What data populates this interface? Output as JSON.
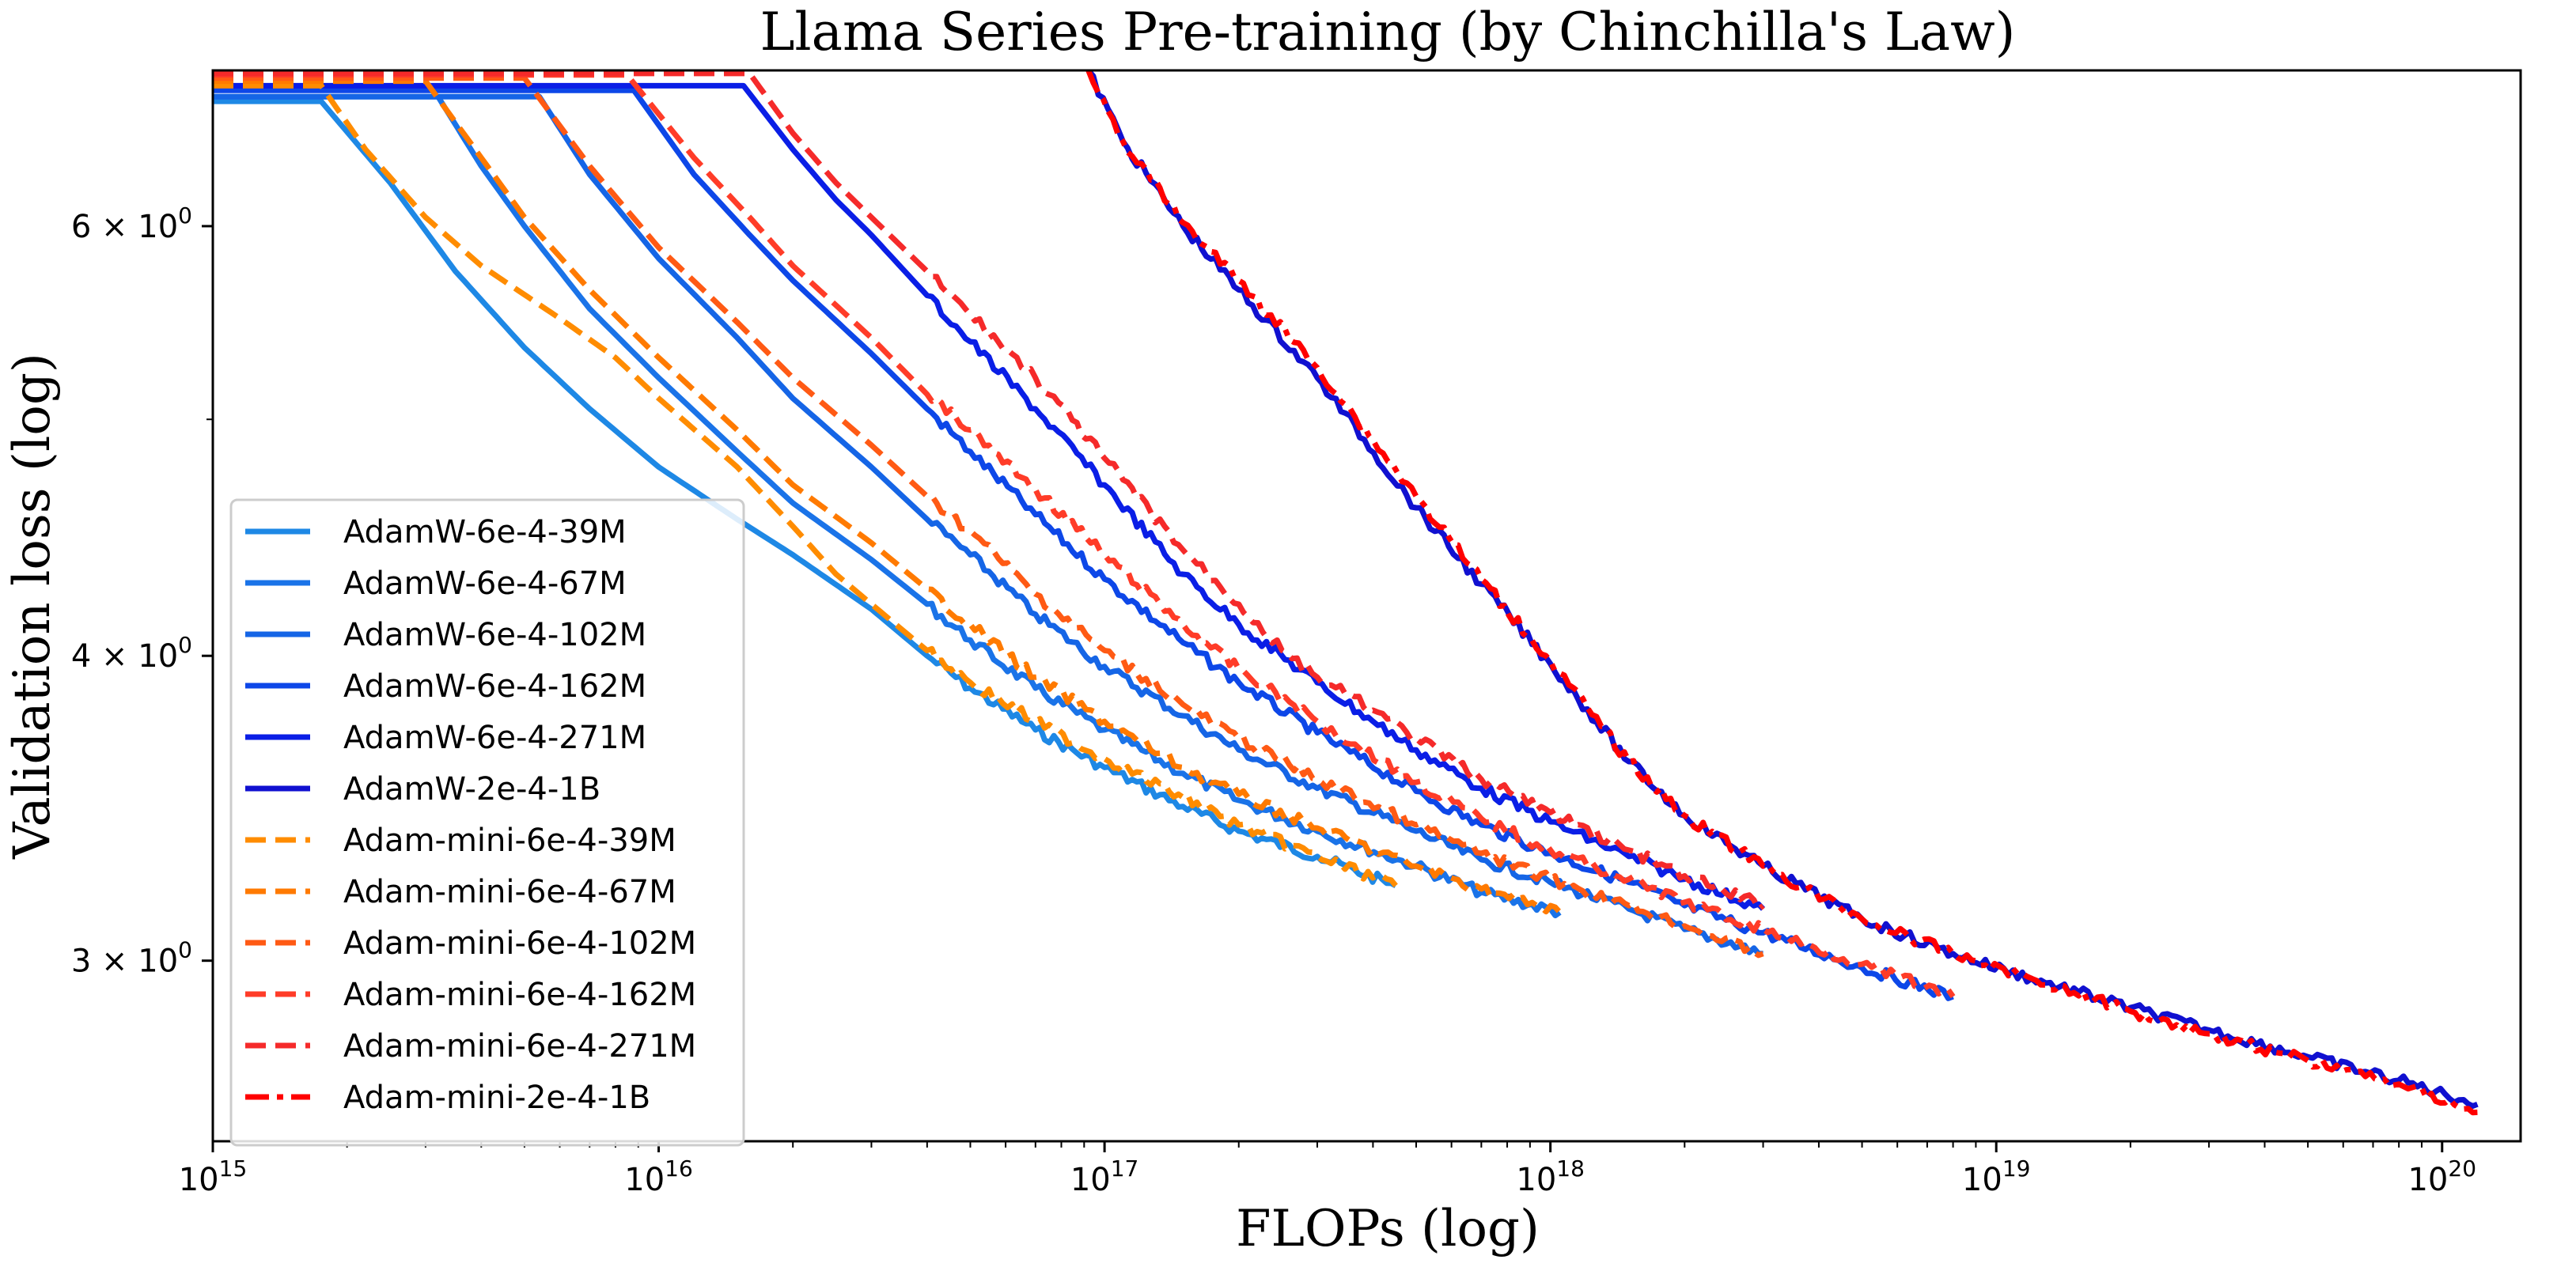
{
  "chart_data": {
    "type": "line",
    "title": "Llama Series Pre-training (by Chinchilla's Law)",
    "xlabel": "FLOPs (log)",
    "ylabel": "Validation loss (log)",
    "xscale": "log",
    "yscale": "log",
    "xlim": [
      1000000000000000.0,
      1.5e+20
    ],
    "ylim": [
      2.53,
      6.95
    ],
    "x_tick_labels": [
      {
        "value": 1000000000000000.0,
        "base": "10",
        "exp": "15"
      },
      {
        "value": 1e+16,
        "base": "10",
        "exp": "16"
      },
      {
        "value": 1e+17,
        "base": "10",
        "exp": "17"
      },
      {
        "value": 1e+18,
        "base": "10",
        "exp": "18"
      },
      {
        "value": 1e+19,
        "base": "10",
        "exp": "19"
      },
      {
        "value": 1e+20,
        "base": "10",
        "exp": "20"
      }
    ],
    "y_tick_labels": [
      {
        "value": 3,
        "mant": "3 × 10",
        "exp": "0"
      },
      {
        "value": 4,
        "mant": "4 × 10",
        "exp": "0"
      },
      {
        "value": 6,
        "mant": "6 × 10",
        "exp": "0"
      }
    ],
    "y_minor_ticks": [
      5
    ],
    "legend_position": "lower-left",
    "series": [
      {
        "name": "AdamW-6e-4-39M",
        "color": "#1e88e5",
        "dash": "solid",
        "points": [
          [
            1000000000000000.0,
            6.75
          ],
          [
            1750000000000000.0,
            6.75
          ],
          [
            2500000000000000.0,
            6.25
          ],
          [
            3500000000000000.0,
            5.75
          ],
          [
            5000000000000000.0,
            5.35
          ],
          [
            7000000000000000.0,
            5.05
          ],
          [
            1e+16,
            4.78
          ],
          [
            1.5e+16,
            4.55
          ],
          [
            2e+16,
            4.4
          ],
          [
            3e+16,
            4.18
          ],
          [
            4e+16,
            4.0
          ],
          [
            5e+16,
            3.88
          ],
          [
            7e+16,
            3.73
          ],
          [
            1e+17,
            3.6
          ],
          [
            1.5e+17,
            3.47
          ],
          [
            2e+17,
            3.39
          ],
          [
            3e+17,
            3.31
          ],
          [
            4.5e+17,
            3.22
          ]
        ]
      },
      {
        "name": "AdamW-6e-4-67M",
        "color": "#1a73e8",
        "dash": "solid",
        "points": [
          [
            1000000000000000.0,
            6.78
          ],
          [
            3200000000000000.0,
            6.78
          ],
          [
            4000000000000000.0,
            6.35
          ],
          [
            5000000000000000.0,
            6.0
          ],
          [
            7000000000000000.0,
            5.55
          ],
          [
            1e+16,
            5.2
          ],
          [
            1.5e+16,
            4.85
          ],
          [
            2e+16,
            4.62
          ],
          [
            3e+16,
            4.38
          ],
          [
            4e+16,
            4.2
          ],
          [
            5e+16,
            4.06
          ],
          [
            7e+16,
            3.88
          ],
          [
            1e+17,
            3.73
          ],
          [
            1.5e+17,
            3.58
          ],
          [
            2e+17,
            3.49
          ],
          [
            3e+17,
            3.39
          ],
          [
            5e+17,
            3.28
          ],
          [
            7e+17,
            3.2
          ],
          [
            1.05e+18,
            3.14
          ]
        ]
      },
      {
        "name": "AdamW-6e-4-102M",
        "color": "#1565e6",
        "dash": "solid",
        "points": [
          [
            1000000000000000.0,
            6.78
          ],
          [
            5400000000000000.0,
            6.78
          ],
          [
            7000000000000000.0,
            6.3
          ],
          [
            1e+16,
            5.82
          ],
          [
            1.5e+16,
            5.4
          ],
          [
            2e+16,
            5.1
          ],
          [
            3e+16,
            4.78
          ],
          [
            4e+16,
            4.55
          ],
          [
            5e+16,
            4.4
          ],
          [
            7e+16,
            4.16
          ],
          [
            1e+17,
            3.96
          ],
          [
            1.5e+17,
            3.78
          ],
          [
            2e+17,
            3.66
          ],
          [
            3e+17,
            3.53
          ],
          [
            5e+17,
            3.39
          ],
          [
            7e+17,
            3.3
          ],
          [
            1e+18,
            3.23
          ],
          [
            1.5e+18,
            3.15
          ],
          [
            2e+18,
            3.09
          ],
          [
            3e+18,
            3.02
          ]
        ]
      },
      {
        "name": "AdamW-6e-4-162M",
        "color": "#0d47e8",
        "dash": "solid",
        "points": [
          [
            1000000000000000.0,
            6.82
          ],
          [
            8800000000000000.0,
            6.82
          ],
          [
            1.2e+16,
            6.3
          ],
          [
            1.6e+16,
            5.95
          ],
          [
            2e+16,
            5.7
          ],
          [
            3e+16,
            5.32
          ],
          [
            4e+16,
            5.05
          ],
          [
            5e+16,
            4.85
          ],
          [
            7e+16,
            4.57
          ],
          [
            1e+17,
            4.3
          ],
          [
            1.5e+17,
            4.05
          ],
          [
            2e+17,
            3.9
          ],
          [
            3e+17,
            3.72
          ],
          [
            5e+17,
            3.52
          ],
          [
            7e+17,
            3.41
          ],
          [
            1e+18,
            3.32
          ],
          [
            1.5e+18,
            3.23
          ],
          [
            2e+18,
            3.16
          ],
          [
            3e+18,
            3.08
          ],
          [
            5e+18,
            2.98
          ],
          [
            8e+18,
            2.9
          ]
        ]
      },
      {
        "name": "AdamW-6e-4-271M",
        "color": "#0a1ee6",
        "dash": "solid",
        "points": [
          [
            1000000000000000.0,
            6.85
          ],
          [
            1.55e+16,
            6.85
          ],
          [
            2e+16,
            6.45
          ],
          [
            2.5e+16,
            6.15
          ],
          [
            3e+16,
            5.95
          ],
          [
            4e+16,
            5.62
          ],
          [
            5e+16,
            5.38
          ],
          [
            7e+16,
            5.05
          ],
          [
            1e+17,
            4.7
          ],
          [
            1.5e+17,
            4.32
          ],
          [
            2e+17,
            4.12
          ],
          [
            3e+17,
            3.9
          ],
          [
            4e+17,
            3.76
          ],
          [
            5e+17,
            3.66
          ],
          [
            7e+17,
            3.53
          ],
          [
            1e+18,
            3.42
          ],
          [
            1.5e+18,
            3.31
          ],
          [
            2e+18,
            3.24
          ],
          [
            3e+18,
            3.15
          ]
        ]
      },
      {
        "name": "AdamW-2e-4-1B",
        "color": "#1010d0",
        "dash": "solid",
        "points": [
          [
            9.2e+16,
            6.95
          ],
          [
            1.1e+17,
            6.5
          ],
          [
            1.5e+17,
            6.0
          ],
          [
            2e+17,
            5.65
          ],
          [
            3e+17,
            5.2
          ],
          [
            5e+17,
            4.6
          ],
          [
            7e+17,
            4.28
          ],
          [
            1e+18,
            3.97
          ],
          [
            1.5e+18,
            3.62
          ],
          [
            2e+18,
            3.44
          ],
          [
            3e+18,
            3.28
          ],
          [
            5e+18,
            3.12
          ],
          [
            8e+18,
            3.02
          ],
          [
            1.2e+19,
            2.95
          ],
          [
            2e+19,
            2.87
          ],
          [
            3e+19,
            2.81
          ],
          [
            5e+19,
            2.74
          ],
          [
            8e+19,
            2.68
          ],
          [
            1.2e+20,
            2.62
          ]
        ]
      },
      {
        "name": "Adam-mini-6e-4-39M",
        "color": "#ff8c00",
        "dash": "dashed",
        "points": [
          [
            1000000000000000.0,
            6.85
          ],
          [
            1750000000000000.0,
            6.85
          ],
          [
            2200000000000000.0,
            6.45
          ],
          [
            3000000000000000.0,
            6.05
          ],
          [
            4000000000000000.0,
            5.78
          ],
          [
            6000000000000000.0,
            5.5
          ],
          [
            8000000000000000.0,
            5.3
          ],
          [
            1e+16,
            5.1
          ],
          [
            1.5e+16,
            4.78
          ],
          [
            2e+16,
            4.52
          ],
          [
            2.5e+16,
            4.32
          ],
          [
            3e+16,
            4.2
          ],
          [
            4e+16,
            4.02
          ],
          [
            5e+16,
            3.9
          ],
          [
            7e+16,
            3.76
          ],
          [
            1e+17,
            3.63
          ],
          [
            1.5e+17,
            3.5
          ],
          [
            2e+17,
            3.41
          ],
          [
            3e+17,
            3.31
          ],
          [
            4.5e+17,
            3.22
          ]
        ]
      },
      {
        "name": "Adam-mini-6e-4-67M",
        "color": "#ff7a00",
        "dash": "dashed",
        "points": [
          [
            1000000000000000.0,
            6.88
          ],
          [
            3000000000000000.0,
            6.88
          ],
          [
            4000000000000000.0,
            6.4
          ],
          [
            5000000000000000.0,
            6.05
          ],
          [
            7000000000000000.0,
            5.65
          ],
          [
            1e+16,
            5.3
          ],
          [
            1.5e+16,
            4.95
          ],
          [
            2e+16,
            4.7
          ],
          [
            3e+16,
            4.45
          ],
          [
            4e+16,
            4.26
          ],
          [
            5e+16,
            4.12
          ],
          [
            7e+16,
            3.92
          ],
          [
            1e+17,
            3.76
          ],
          [
            1.5e+17,
            3.6
          ],
          [
            2e+17,
            3.51
          ],
          [
            3e+17,
            3.4
          ],
          [
            5e+17,
            3.28
          ],
          [
            7e+17,
            3.21
          ],
          [
            1.05e+18,
            3.14
          ]
        ]
      },
      {
        "name": "Adam-mini-6e-4-102M",
        "color": "#ff5a14",
        "dash": "dashed",
        "points": [
          [
            1000000000000000.0,
            6.9
          ],
          [
            5000000000000000.0,
            6.9
          ],
          [
            7000000000000000.0,
            6.35
          ],
          [
            1e+16,
            5.88
          ],
          [
            1.5e+16,
            5.48
          ],
          [
            2e+16,
            5.2
          ],
          [
            3e+16,
            4.88
          ],
          [
            4e+16,
            4.65
          ],
          [
            5e+16,
            4.5
          ],
          [
            7e+16,
            4.24
          ],
          [
            1e+17,
            4.02
          ],
          [
            1.5e+17,
            3.82
          ],
          [
            2e+17,
            3.7
          ],
          [
            3e+17,
            3.56
          ],
          [
            5e+17,
            3.41
          ],
          [
            7e+17,
            3.32
          ],
          [
            1e+18,
            3.24
          ],
          [
            1.5e+18,
            3.16
          ],
          [
            2e+18,
            3.1
          ],
          [
            3e+18,
            3.02
          ]
        ]
      },
      {
        "name": "Adam-mini-6e-4-162M",
        "color": "#ff3c28",
        "dash": "dashed",
        "points": [
          [
            1000000000000000.0,
            6.92
          ],
          [
            8500000000000000.0,
            6.92
          ],
          [
            1.2e+16,
            6.4
          ],
          [
            1.6e+16,
            6.05
          ],
          [
            2e+16,
            5.78
          ],
          [
            3e+16,
            5.4
          ],
          [
            4e+16,
            5.12
          ],
          [
            5e+16,
            4.95
          ],
          [
            7e+16,
            4.68
          ],
          [
            1e+17,
            4.4
          ],
          [
            1.5e+17,
            4.12
          ],
          [
            2e+17,
            3.95
          ],
          [
            3e+17,
            3.76
          ],
          [
            5e+17,
            3.55
          ],
          [
            7e+17,
            3.43
          ],
          [
            1e+18,
            3.33
          ],
          [
            1.5e+18,
            3.24
          ],
          [
            2e+18,
            3.17
          ],
          [
            3e+18,
            3.09
          ],
          [
            5e+18,
            2.99
          ],
          [
            8e+18,
            2.9
          ]
        ]
      },
      {
        "name": "Adam-mini-6e-4-271M",
        "color": "#f52a2a",
        "dash": "dashed",
        "points": [
          [
            1000000000000000.0,
            6.93
          ],
          [
            1.6e+16,
            6.93
          ],
          [
            2e+16,
            6.55
          ],
          [
            2.5e+16,
            6.25
          ],
          [
            3e+16,
            6.05
          ],
          [
            4e+16,
            5.75
          ],
          [
            5e+16,
            5.52
          ],
          [
            7e+16,
            5.2
          ],
          [
            1e+17,
            4.82
          ],
          [
            1.5e+17,
            4.42
          ],
          [
            2e+17,
            4.2
          ],
          [
            2.5e+17,
            4.02
          ],
          [
            3e+17,
            3.92
          ],
          [
            4e+17,
            3.8
          ],
          [
            5e+17,
            3.7
          ],
          [
            7e+17,
            3.56
          ],
          [
            1e+18,
            3.45
          ],
          [
            1.5e+18,
            3.33
          ],
          [
            2e+18,
            3.25
          ],
          [
            3e+18,
            3.16
          ]
        ]
      },
      {
        "name": "Adam-mini-2e-4-1B",
        "color": "#ff0000",
        "dash": "dashdot",
        "points": [
          [
            9.2e+16,
            6.95
          ],
          [
            1.1e+17,
            6.5
          ],
          [
            1.5e+17,
            6.02
          ],
          [
            2e+17,
            5.7
          ],
          [
            3e+17,
            5.25
          ],
          [
            5e+17,
            4.65
          ],
          [
            7e+17,
            4.3
          ],
          [
            1e+18,
            3.98
          ],
          [
            1.5e+18,
            3.62
          ],
          [
            2e+18,
            3.44
          ],
          [
            3e+18,
            3.28
          ],
          [
            5e+18,
            3.12
          ],
          [
            8e+18,
            3.02
          ],
          [
            1.2e+19,
            2.95
          ],
          [
            2e+19,
            2.86
          ],
          [
            3e+19,
            2.8
          ],
          [
            5e+19,
            2.73
          ],
          [
            8e+19,
            2.67
          ],
          [
            1.2e+20,
            2.6
          ]
        ]
      }
    ]
  }
}
